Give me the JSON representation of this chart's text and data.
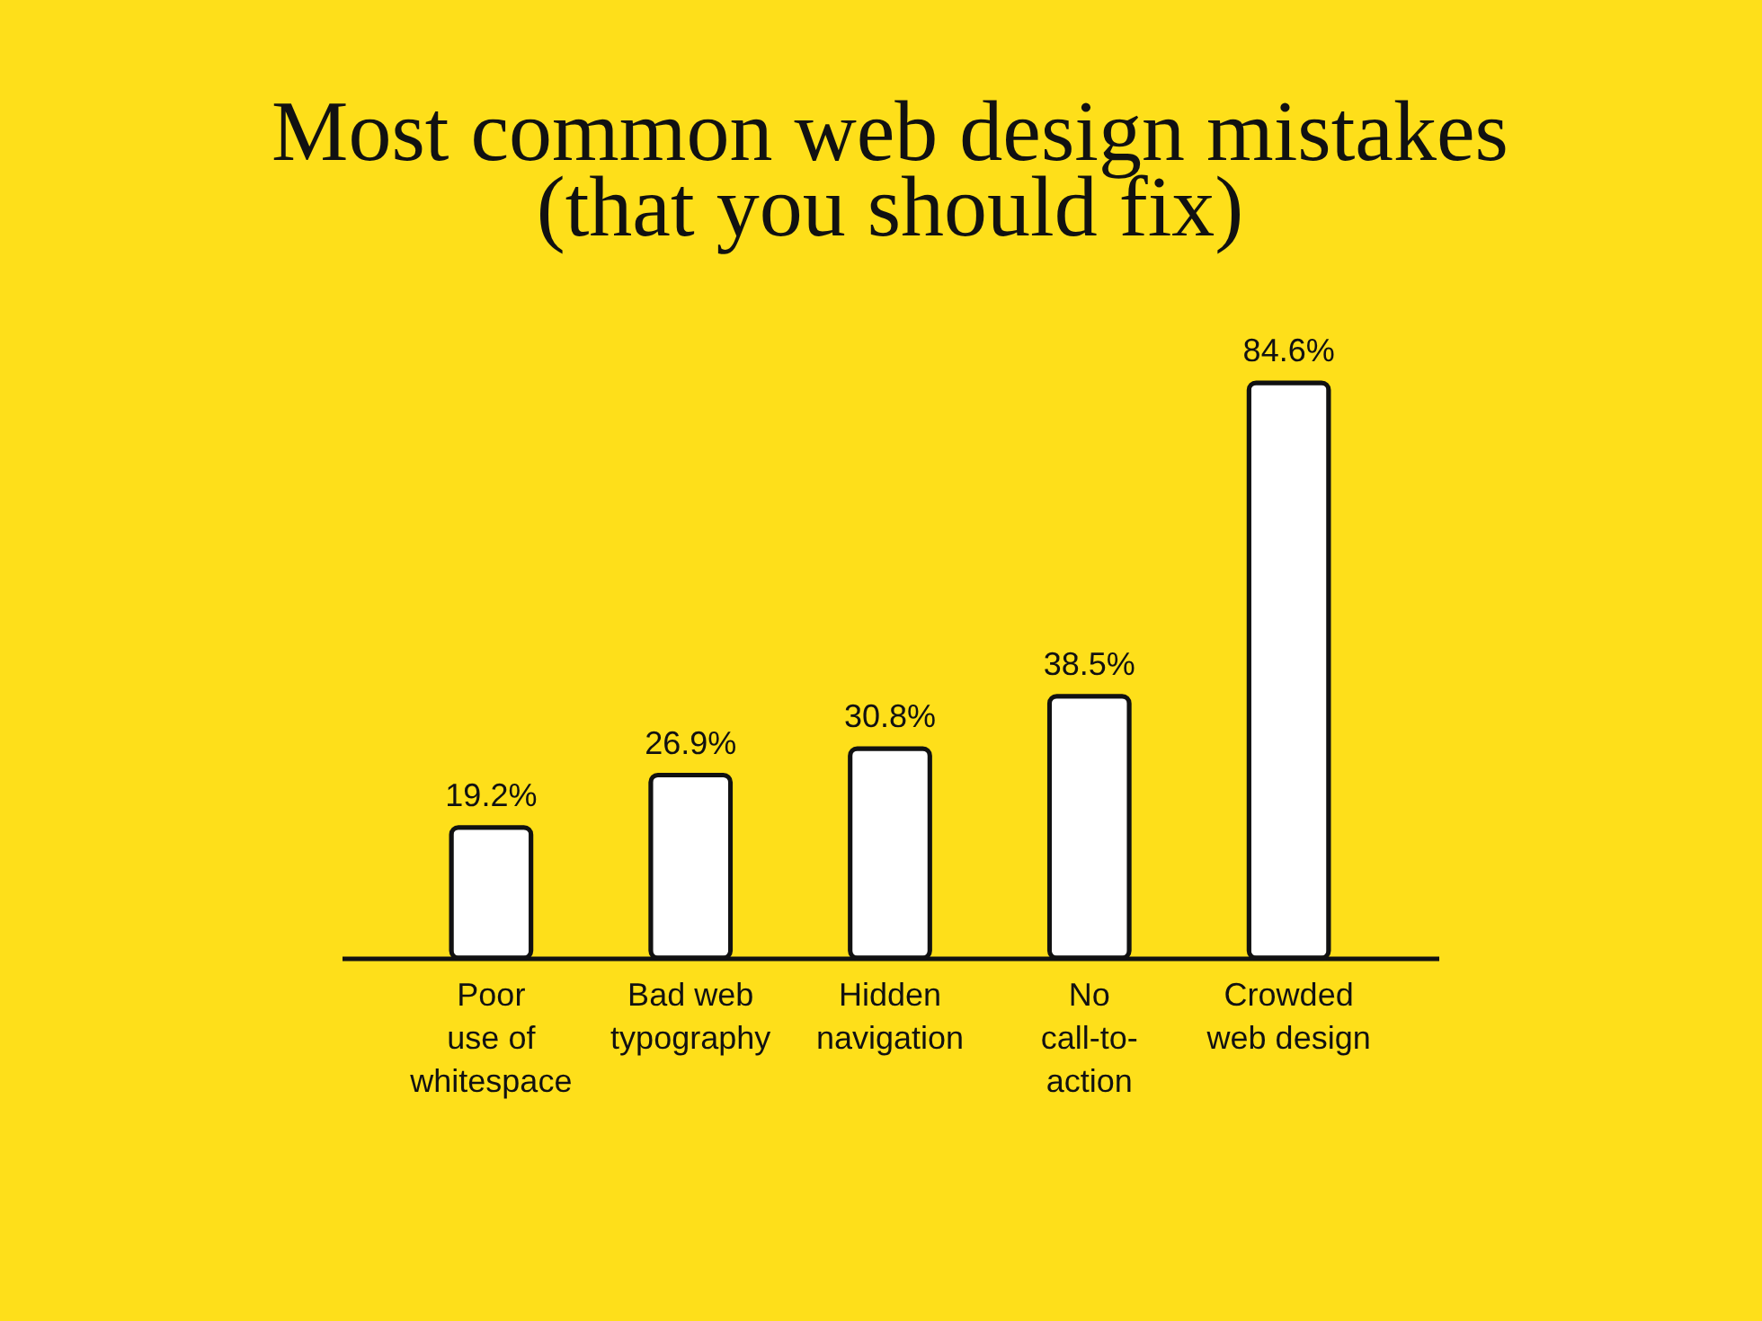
{
  "chart_data": {
    "type": "bar",
    "title": "Most common web design mistakes\n(that you should fix)",
    "categories": [
      "Poor\nuse of\nwhitespace",
      "Bad web\ntypography",
      "Hidden\nnavigation",
      "No\ncall-to-\naction",
      "Crowded\nweb design"
    ],
    "values": [
      19.2,
      26.9,
      30.8,
      38.5,
      84.6
    ],
    "value_labels": [
      "19.2%",
      "26.9%",
      "30.8%",
      "38.5%",
      "84.6%"
    ],
    "color": "#ffffff"
  }
}
